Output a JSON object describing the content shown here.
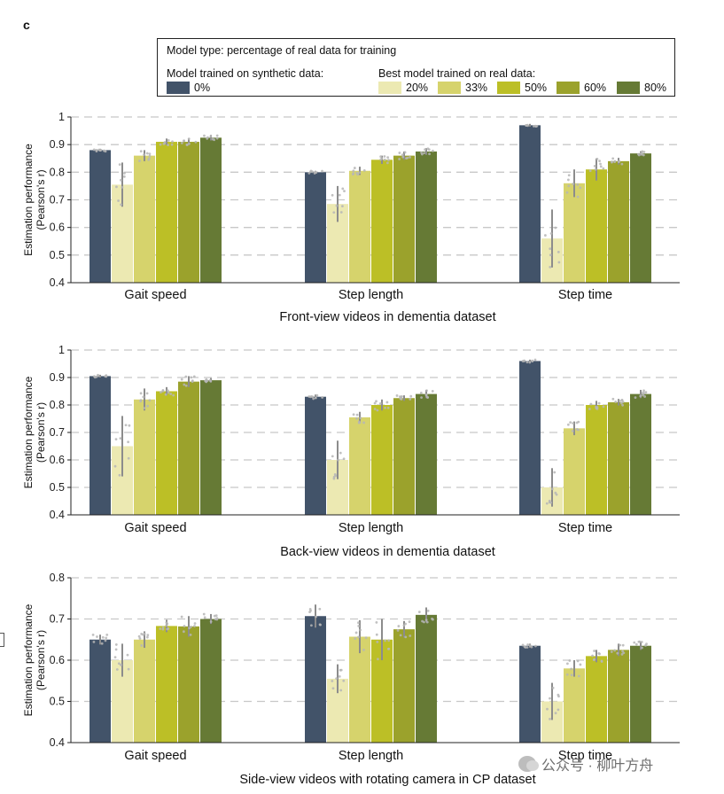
{
  "panel_letter": "c",
  "legend": {
    "title": "Model type: percentage of real data for training",
    "synthetic_heading": "Model trained on synthetic data:",
    "real_heading": "Best model trained on real data:",
    "items": [
      {
        "label": "0%",
        "color": "#425369"
      },
      {
        "label": "20%",
        "color": "#ece9b2"
      },
      {
        "label": "33%",
        "color": "#d6d36c"
      },
      {
        "label": "50%",
        "color": "#bcbf26"
      },
      {
        "label": "60%",
        "color": "#9ba22c"
      },
      {
        "label": "80%",
        "color": "#667a35"
      }
    ]
  },
  "watermark": "公众号 · 柳叶方舟",
  "chart_data": [
    {
      "type": "bar",
      "title": "Front-view videos in dementia dataset",
      "ylabel": "Estimation performance",
      "ylabel2": "(Pearson's r)",
      "ylim": [
        0.4,
        1.0
      ],
      "yticks": [
        "0.4",
        "0.5",
        "0.6",
        "0.7",
        "0.8",
        "0.9",
        "1"
      ],
      "categories": [
        "Gait speed",
        "Step length",
        "Step time"
      ],
      "series": [
        {
          "name": "0%",
          "values": [
            0.88,
            0.8,
            0.97
          ]
        },
        {
          "name": "20%",
          "values": [
            0.755,
            0.685,
            0.56
          ]
        },
        {
          "name": "33%",
          "values": [
            0.86,
            0.805,
            0.76
          ]
        },
        {
          "name": "50%",
          "values": [
            0.91,
            0.845,
            0.81
          ]
        },
        {
          "name": "60%",
          "values": [
            0.91,
            0.86,
            0.84
          ]
        },
        {
          "name": "80%",
          "values": [
            0.925,
            0.875,
            0.868
          ]
        }
      ],
      "errors": [
        [
          0.005,
          0.005,
          0.005
        ],
        [
          0.08,
          0.065,
          0.105
        ],
        [
          0.02,
          0.015,
          0.05
        ],
        [
          0.012,
          0.015,
          0.04
        ],
        [
          0.012,
          0.015,
          0.012
        ],
        [
          0.01,
          0.012,
          0.008
        ]
      ]
    },
    {
      "type": "bar",
      "title": "Back-view videos in dementia dataset",
      "ylabel": "Estimation performance",
      "ylabel2": "(Pearson's r)",
      "ylim": [
        0.4,
        1.0
      ],
      "yticks": [
        "0.4",
        "0.5",
        "0.6",
        "0.7",
        "0.8",
        "0.9",
        "1"
      ],
      "categories": [
        "Gait speed",
        "Step length",
        "Step time"
      ],
      "series": [
        {
          "name": "0%",
          "values": [
            0.905,
            0.83,
            0.96
          ]
        },
        {
          "name": "20%",
          "values": [
            0.65,
            0.6,
            0.5
          ]
        },
        {
          "name": "33%",
          "values": [
            0.82,
            0.755,
            0.715
          ]
        },
        {
          "name": "50%",
          "values": [
            0.85,
            0.8,
            0.8
          ]
        },
        {
          "name": "60%",
          "values": [
            0.885,
            0.825,
            0.81
          ]
        },
        {
          "name": "80%",
          "values": [
            0.89,
            0.84,
            0.84
          ]
        }
      ],
      "errors": [
        [
          0.005,
          0.008,
          0.005
        ],
        [
          0.11,
          0.07,
          0.07
        ],
        [
          0.04,
          0.02,
          0.025
        ],
        [
          0.015,
          0.02,
          0.015
        ],
        [
          0.02,
          0.01,
          0.012
        ],
        [
          0.008,
          0.015,
          0.015
        ]
      ]
    },
    {
      "type": "bar",
      "title": "Side-view videos with rotating camera in CP dataset",
      "ylabel": "Estimation performance",
      "ylabel2": "(Pearson's r)",
      "ylim": [
        0.4,
        0.8
      ],
      "yticks": [
        "0.4",
        "0.5",
        "0.6",
        "0.7",
        "0.8"
      ],
      "categories": [
        "Gait speed",
        "Step length",
        "Step time"
      ],
      "series": [
        {
          "name": "0%",
          "values": [
            0.65,
            0.707,
            0.635
          ]
        },
        {
          "name": "20%",
          "values": [
            0.6,
            0.555,
            0.5
          ]
        },
        {
          "name": "33%",
          "values": [
            0.65,
            0.657,
            0.58
          ]
        },
        {
          "name": "50%",
          "values": [
            0.683,
            0.65,
            0.61
          ]
        },
        {
          "name": "60%",
          "values": [
            0.682,
            0.675,
            0.625
          ]
        },
        {
          "name": "80%",
          "values": [
            0.7,
            0.71,
            0.635
          ]
        }
      ],
      "errors": [
        [
          0.012,
          0.028,
          0.005
        ],
        [
          0.04,
          0.035,
          0.045
        ],
        [
          0.02,
          0.04,
          0.02
        ],
        [
          0.015,
          0.05,
          0.015
        ],
        [
          0.025,
          0.02,
          0.015
        ],
        [
          0.012,
          0.018,
          0.01
        ]
      ]
    }
  ]
}
